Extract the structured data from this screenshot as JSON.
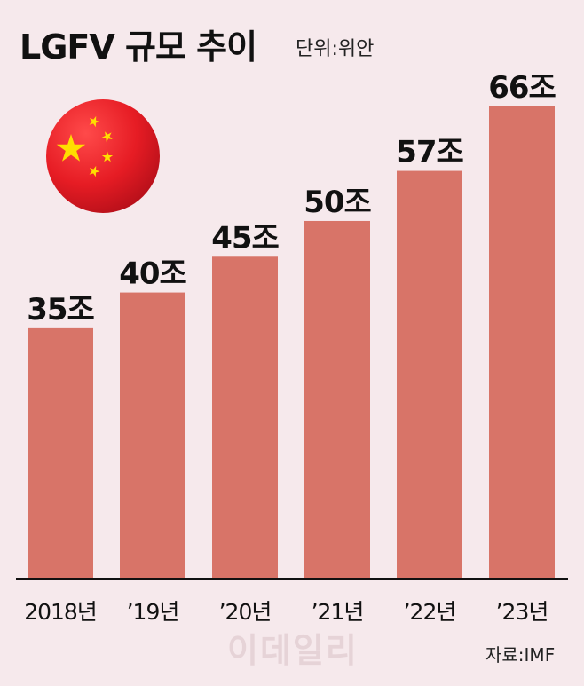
{
  "chart_data": {
    "type": "bar",
    "title": "LGFV 규모 추이",
    "unit": "단위:위안",
    "categories": [
      "2018년",
      "’19년",
      "’20년",
      "’21년",
      "’22년",
      "’23년"
    ],
    "values": [
      35,
      40,
      45,
      50,
      57,
      66
    ],
    "value_labels": [
      "35조",
      "40조",
      "45조",
      "50조",
      "57조",
      "66조"
    ],
    "ylim": [
      0,
      66
    ],
    "grid": false,
    "legend": "none",
    "bar_color": "#d87468",
    "axis_color": "#111111"
  },
  "source": "자료:IMF",
  "watermark": "이데일리",
  "flag_icon": "china-flag-icon",
  "colors": {
    "background": "#f6e9ec",
    "flag_red": "#ee1c25",
    "flag_star": "#ffde00"
  }
}
